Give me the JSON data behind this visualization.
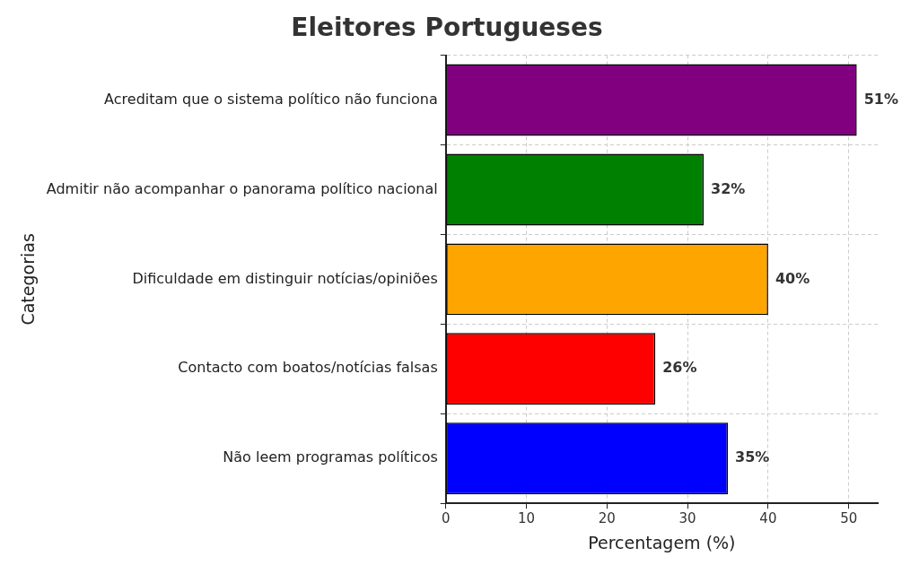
{
  "chart_data": {
    "type": "bar",
    "orientation": "horizontal",
    "title": "Eleitores Portugueses",
    "xlabel": "Percentagem (%)",
    "ylabel": "Categorias",
    "categories": [
      "Acreditam que o sistema político não funciona",
      "Admitir não acompanhar o panorama político nacional",
      "Dificuldade em distinguir notícias/opiniões",
      "Contacto com boatos/notícias falsas",
      "Não leem programas políticos"
    ],
    "values": [
      51,
      32,
      40,
      26,
      35
    ],
    "colors": [
      "#800080",
      "#008000",
      "#ffa500",
      "#ff0000",
      "#0000ff"
    ],
    "value_labels": [
      "51%",
      "32%",
      "40%",
      "26%",
      "35%"
    ],
    "xlim": [
      0,
      53.6
    ],
    "xticks": [
      0,
      10,
      20,
      30,
      40,
      50
    ],
    "grid": true,
    "legend": false
  }
}
